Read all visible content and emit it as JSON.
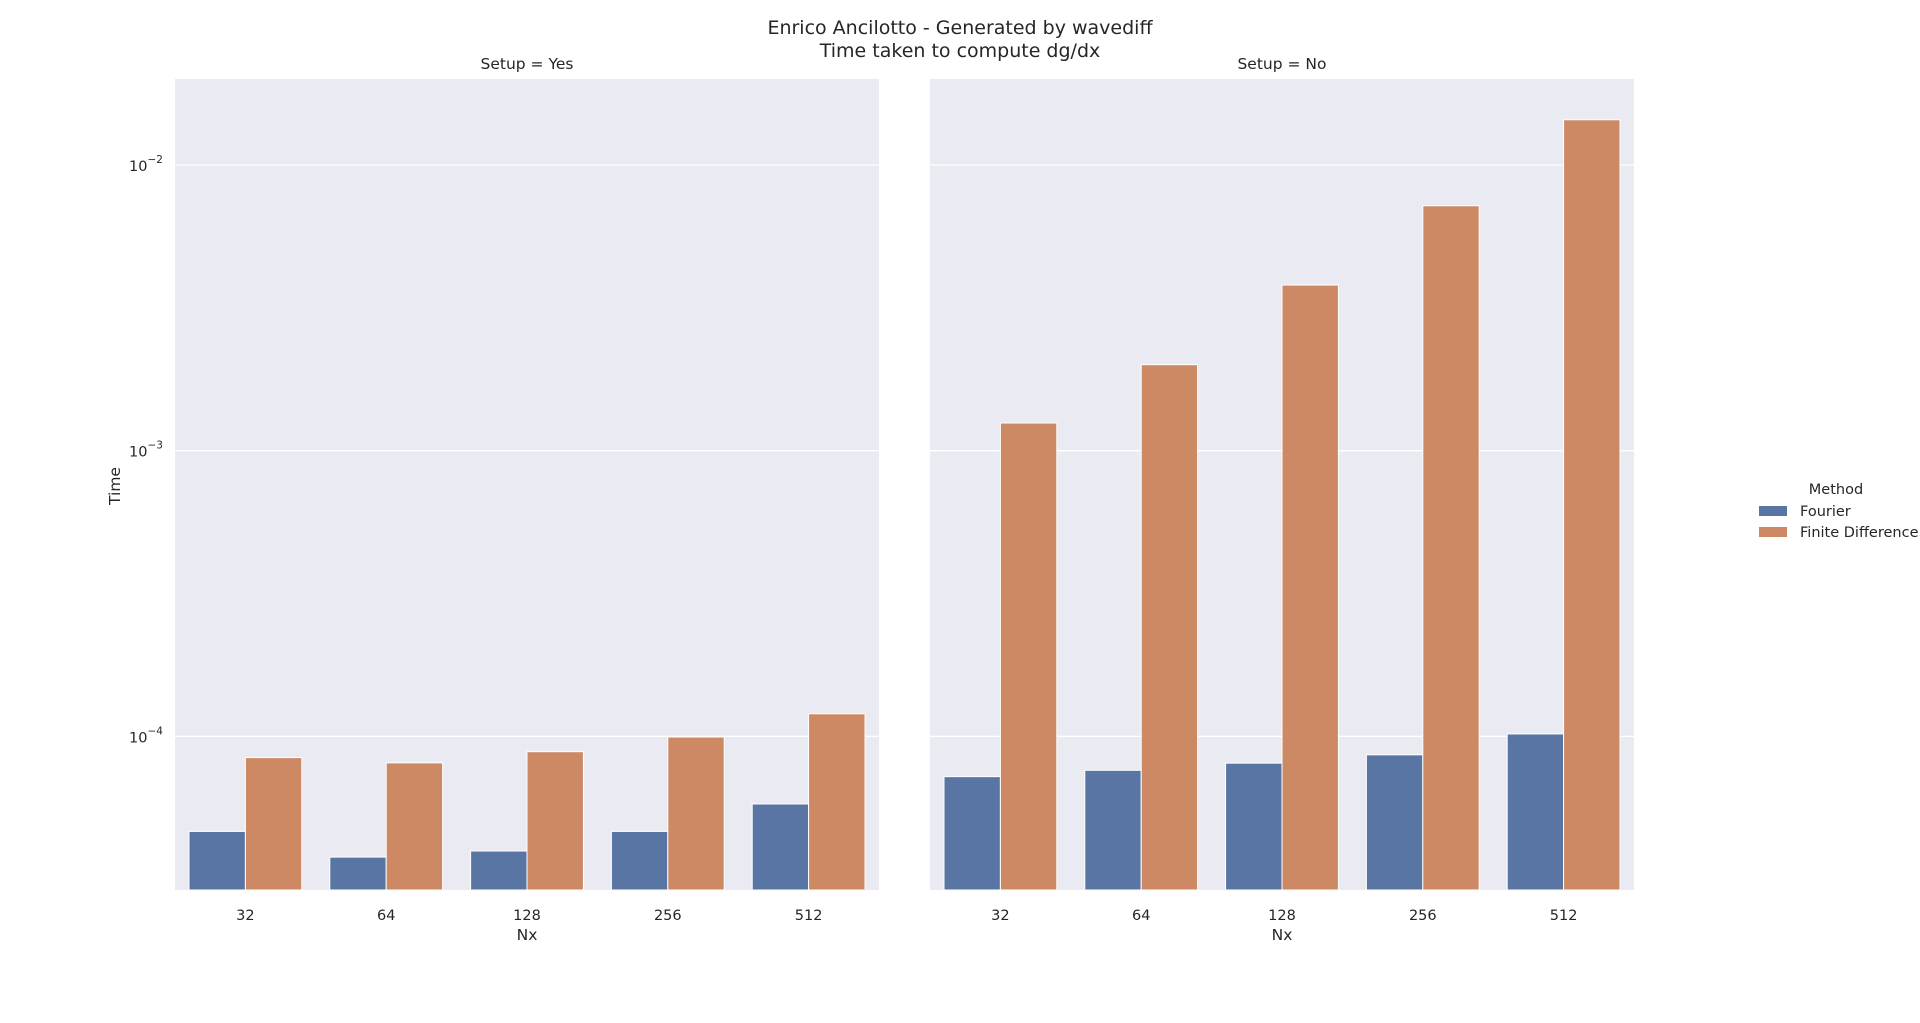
{
  "chart_data": {
    "type": "bar",
    "title_lines": [
      "Enrico Ancilotto - Generated by wavediff",
      "Time taken to compute dg/dx"
    ],
    "ylabel": "Time",
    "xlabel": "Nx",
    "yscale": "log",
    "ylim": [
      2.9e-05,
      0.02
    ],
    "yticks": [
      {
        "value": 0.0001,
        "base": "10",
        "exp": "−4"
      },
      {
        "value": 0.001,
        "base": "10",
        "exp": "−3"
      },
      {
        "value": 0.01,
        "base": "10",
        "exp": "−2"
      }
    ],
    "grid": true,
    "legend": {
      "title": "Method",
      "placement": "right",
      "entries": [
        {
          "name": "Fourier",
          "color": "#5875a4"
        },
        {
          "name": "Finite Difference",
          "color": "#cc8963"
        }
      ]
    },
    "categories": [
      "32",
      "64",
      "128",
      "256",
      "512"
    ],
    "panels": [
      {
        "title": "Setup = Yes",
        "series": [
          {
            "name": "Fourier",
            "values": [
              4.65e-05,
              3.78e-05,
              3.97e-05,
              4.65e-05,
              5.8e-05
            ]
          },
          {
            "name": "Finite Difference",
            "values": [
              8.43e-05,
              8.08e-05,
              8.84e-05,
              9.95e-05,
              0.00012
            ]
          }
        ]
      },
      {
        "title": "Setup = No",
        "series": [
          {
            "name": "Fourier",
            "values": [
              7.23e-05,
              7.61e-05,
              8.06e-05,
              8.62e-05,
              0.000102
            ]
          },
          {
            "name": "Finite Difference",
            "values": [
              0.00125,
              0.002,
              0.0038,
              0.0072,
              0.0144
            ]
          }
        ]
      }
    ]
  },
  "colors": {
    "panel_bg": "#eaeaf2",
    "grid": "#ffffff",
    "fourier": "#5875a4",
    "finite_difference": "#cc8963"
  }
}
